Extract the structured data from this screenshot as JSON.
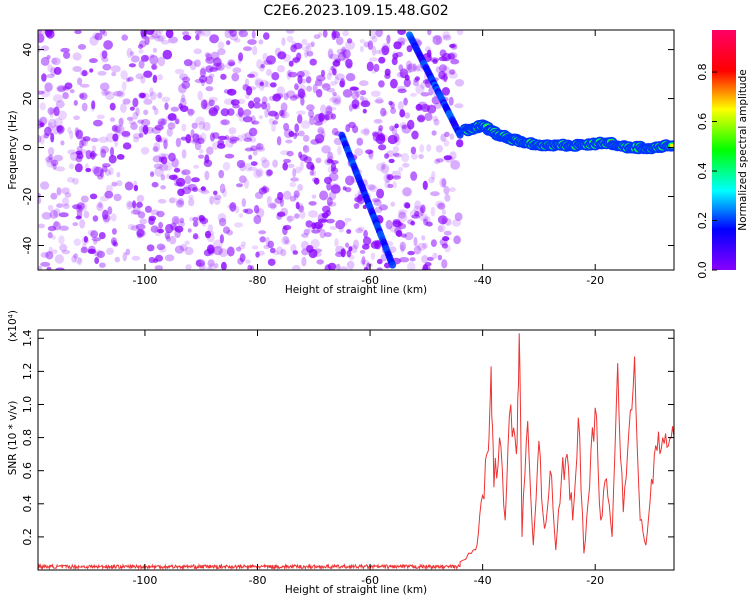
{
  "title": "C2E6.2023.109.15.48.G02",
  "colors": {
    "series": "#ee3333",
    "frame": "#000000"
  },
  "chart_data": [
    {
      "type": "heatmap",
      "xlabel": "Height of straight line (km)",
      "ylabel": "Frequency (Hz)",
      "xlim": [
        -119,
        -6
      ],
      "ylim": [
        -50,
        48
      ],
      "xticks": [
        -100,
        -80,
        -60,
        -40,
        -20
      ],
      "yticks": [
        -40,
        -20,
        0,
        20,
        40
      ],
      "colorbar": {
        "label": "Normalized spectral amplitude",
        "range": [
          0.0,
          0.97
        ],
        "ticks": [
          0.0,
          0.2,
          0.4,
          0.6,
          0.8
        ],
        "colormap": [
          "#8800ff",
          "#0000ff",
          "#00ffff",
          "#00ff00",
          "#ffff00",
          "#ff0000",
          "#ff0066"
        ]
      },
      "features": {
        "noise_region_x": [
          -119,
          -44
        ],
        "noise_amplitude": [
          0.0,
          0.2
        ],
        "doppler_track": {
          "x": [
            -43,
            -40,
            -37,
            -34,
            -30,
            -26,
            -22,
            -18,
            -14,
            -10,
            -6
          ],
          "freq": [
            7,
            9,
            5,
            3,
            1,
            1,
            1,
            2,
            0,
            0,
            1
          ],
          "amplitude": [
            0.3,
            0.55,
            0.65,
            0.75,
            0.9,
            0.9,
            0.85,
            0.9,
            0.7,
            0.85,
            0.6
          ]
        },
        "diagonal_streaks": [
          {
            "x": [
              -65,
              -56
            ],
            "freq": [
              5,
              -48
            ]
          },
          {
            "x": [
              -53,
              -44
            ],
            "freq": [
              46,
              5
            ]
          }
        ]
      }
    },
    {
      "type": "line",
      "xlabel": "Height of straight line (km)",
      "ylabel": "SNR (10 * v/v)",
      "multiplier": "(x10⁴)",
      "xlim": [
        -119,
        -6
      ],
      "ylim": [
        0,
        1.45
      ],
      "xticks": [
        -100,
        -80,
        -60,
        -40,
        -20
      ],
      "yticks": [
        0.2,
        0.4,
        0.6,
        0.8,
        1.0,
        1.2,
        1.4
      ],
      "baseline_level": 0.02,
      "series": [
        {
          "x": [
            -44,
            -42,
            -41,
            -40,
            -39,
            -38.5,
            -38,
            -37,
            -36,
            -35,
            -34,
            -33.5,
            -33,
            -32,
            -31,
            -30,
            -29,
            -28,
            -27,
            -26,
            -25,
            -24,
            -23,
            -22,
            -21,
            -20,
            -19,
            -18,
            -17,
            -16,
            -15,
            -14,
            -13,
            -12,
            -11,
            -10,
            -9,
            -8,
            -7,
            -6
          ],
          "values": [
            0.05,
            0.1,
            0.15,
            0.45,
            0.72,
            1.23,
            0.5,
            0.8,
            0.3,
            1.0,
            0.7,
            1.43,
            0.2,
            0.9,
            0.15,
            0.78,
            0.25,
            0.6,
            0.12,
            0.55,
            0.7,
            0.3,
            0.92,
            0.1,
            0.5,
            0.98,
            0.3,
            0.55,
            0.2,
            1.25,
            0.35,
            0.85,
            1.29,
            0.3,
            0.15,
            0.55,
            0.72,
            0.8,
            0.75,
            0.8
          ]
        }
      ]
    }
  ]
}
